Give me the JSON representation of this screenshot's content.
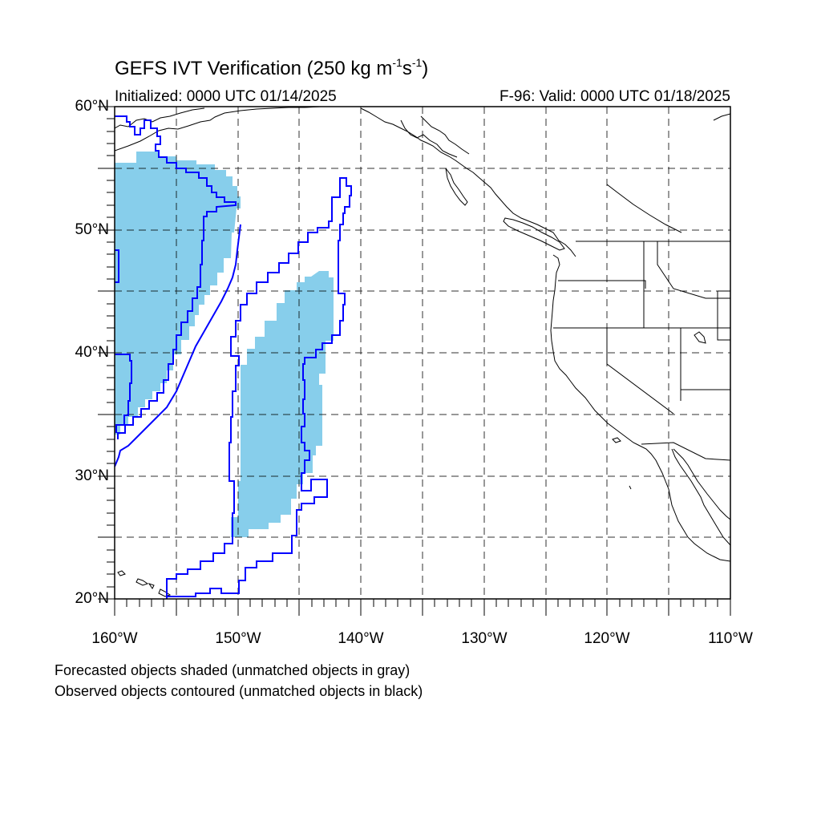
{
  "title": {
    "main": "GEFS IVT Verification (250 kg m",
    "sup1": "-1",
    "mid": "s",
    "sup2": "-1",
    "end": ")"
  },
  "init_label": "Initialized: 0000 UTC 01/14/2025",
  "valid_label": "F-96: Valid: 0000 UTC 01/18/2025",
  "lat_labels": [
    "60°N",
    "50°N",
    "40°N",
    "30°N",
    "20°N"
  ],
  "lon_labels": [
    "160°W",
    "150°W",
    "140°W",
    "130°W",
    "120°W",
    "110°W"
  ],
  "footnotes": [
    "Forecasted objects shaded (unmatched objects in gray)",
    "Observed objects contoured (unmatched objects in black)"
  ],
  "colors": {
    "forecast_fill": "#87ceeb",
    "observed_contour": "#0000ff",
    "coastline": "#000000",
    "grid": "#000000"
  }
}
